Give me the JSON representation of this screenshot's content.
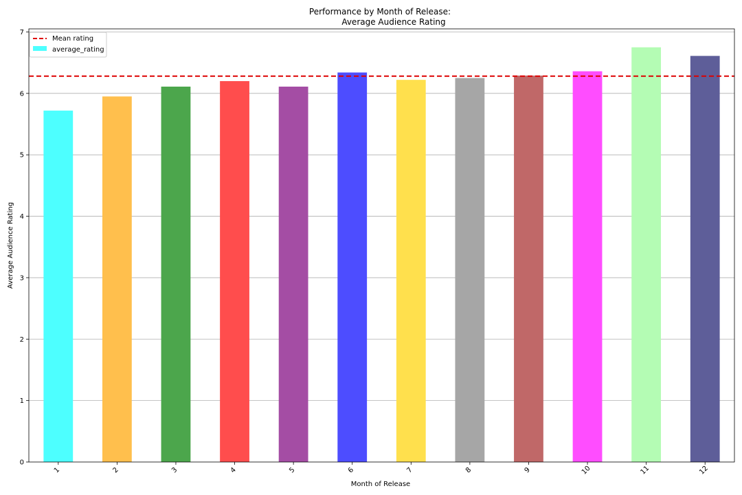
{
  "chart_data": {
    "type": "bar",
    "title_line1": "Performance by Month of Release:",
    "title_line2": "Average Audience Rating",
    "xlabel": "Month of Release",
    "ylabel": "Average Audience Rating",
    "categories": [
      "1",
      "2",
      "3",
      "4",
      "5",
      "6",
      "7",
      "8",
      "9",
      "10",
      "11",
      "12"
    ],
    "series": [
      {
        "name": "average_rating",
        "values": [
          5.72,
          5.95,
          6.11,
          6.2,
          6.11,
          6.34,
          6.22,
          6.25,
          6.29,
          6.36,
          6.75,
          6.61
        ]
      }
    ],
    "bar_colors": [
      "#4dffff",
      "#ffbf4d",
      "#4ca64c",
      "#ff4d4d",
      "#a44da4",
      "#4d4dff",
      "#ffe04d",
      "#a6a6a6",
      "#c06868",
      "#ff4dff",
      "#b4fcb4",
      "#5e5e99"
    ],
    "mean_line": {
      "label": "Mean rating",
      "value": 6.28,
      "color": "#dd0000",
      "style": "dashed"
    },
    "ylim": [
      0,
      7.05
    ],
    "yticks": [
      0,
      1,
      2,
      3,
      4,
      5,
      6,
      7
    ],
    "grid": "y-major",
    "legend_position": "top-left",
    "xtick_rotation": "45deg"
  }
}
